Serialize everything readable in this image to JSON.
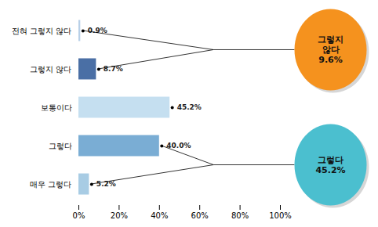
{
  "chart_data": {
    "type": "bar",
    "orientation": "horizontal",
    "categories": [
      "전혀 그렇지 않다",
      "그렇지 않다",
      "보통이다",
      "그렇다",
      "매우 그렇다"
    ],
    "values": [
      0.9,
      8.7,
      45.2,
      40.0,
      5.2
    ],
    "value_labels": [
      "0.9%",
      "8.7%",
      "45.2%",
      "40.0%",
      "5.2%"
    ],
    "colors": [
      "#b8d0e8",
      "#4a6fa5",
      "#c5dff0",
      "#7aadd4",
      "#a8cce4"
    ],
    "data_labels": true,
    "xlim": [
      0,
      100
    ],
    "xticks": [
      {
        "value": 0,
        "label": "0%"
      },
      {
        "value": 20,
        "label": "20%"
      },
      {
        "value": 40,
        "label": "40%"
      },
      {
        "value": 60,
        "label": "60%"
      },
      {
        "value": 80,
        "label": "80%"
      },
      {
        "value": 100,
        "label": "100%"
      }
    ],
    "grid": false,
    "annotations": [
      {
        "text": "그렇지\n않다\n9.6%",
        "color": "#f5921e",
        "categories": [
          "전혀 그렇지 않다",
          "그렇지 않다"
        ]
      },
      {
        "text": "그렇다\n45.2%",
        "color": "#4bbfcf",
        "categories": [
          "그렇다",
          "매우 그렇다"
        ]
      }
    ]
  }
}
